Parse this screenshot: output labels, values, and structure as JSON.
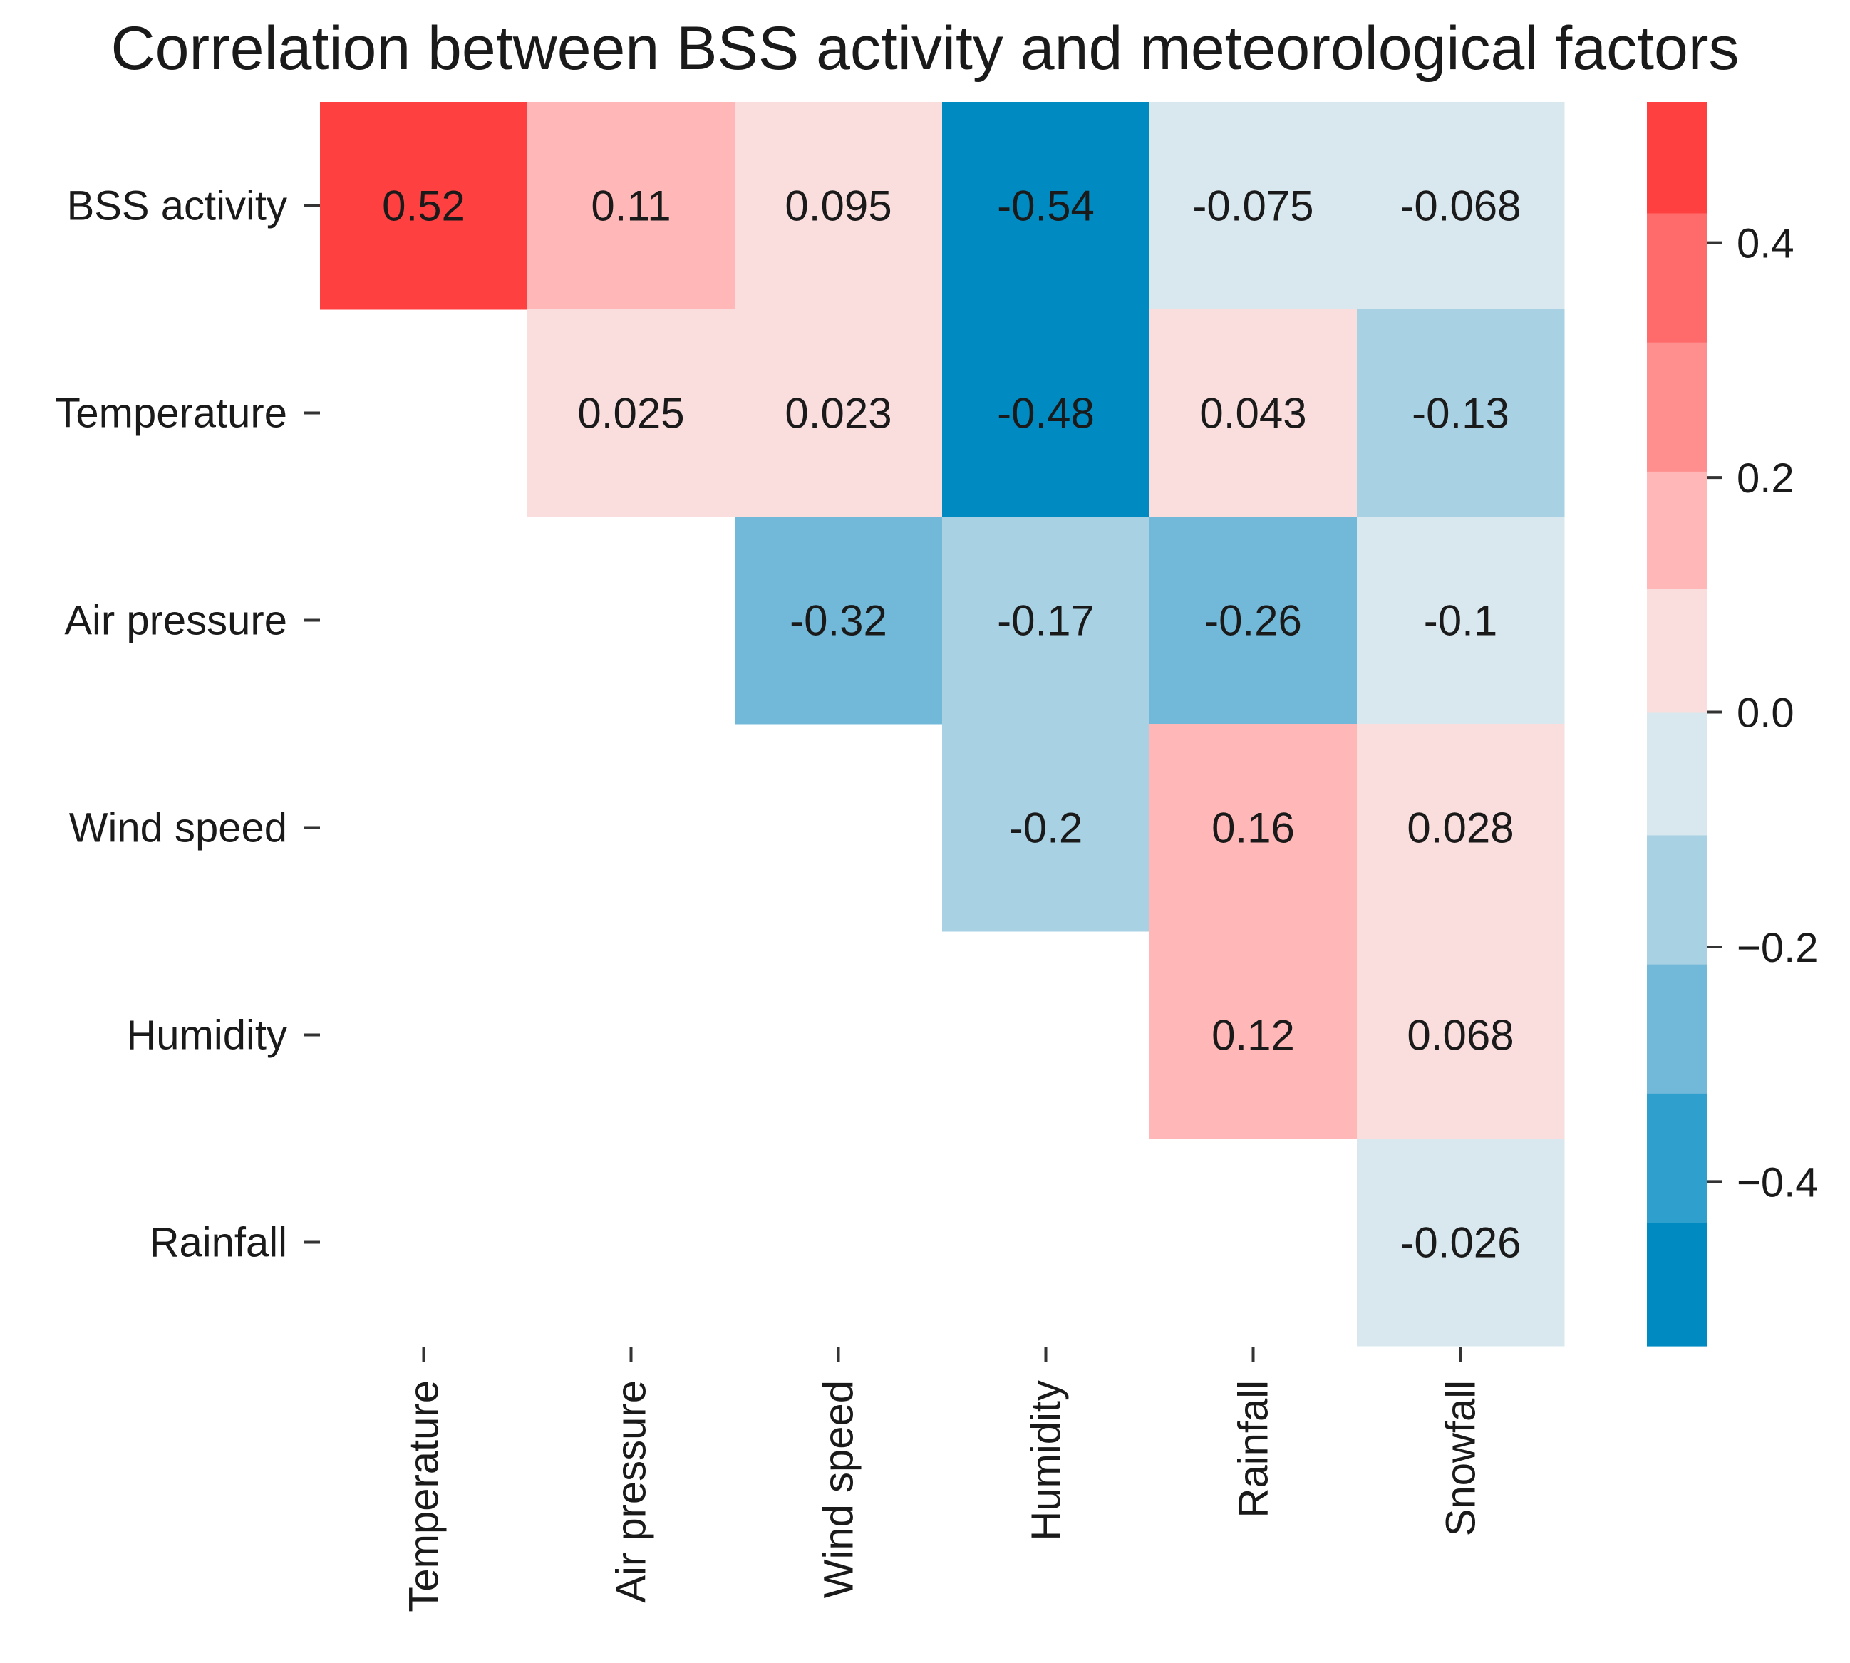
{
  "chart_data": {
    "type": "heatmap",
    "title": "Correlation between BSS activity and meteorological factors",
    "row_labels": [
      "BSS activity",
      "Temperature",
      "Air pressure",
      "Wind speed",
      "Humidity",
      "Rainfall"
    ],
    "col_labels": [
      "Temperature",
      "Air pressure",
      "Wind speed",
      "Humidity",
      "Rainfall",
      "Snowfall"
    ],
    "cells": [
      {
        "row": 0,
        "col": 0,
        "value": 0.52,
        "label": "0.52"
      },
      {
        "row": 0,
        "col": 1,
        "value": 0.11,
        "label": "0.11"
      },
      {
        "row": 0,
        "col": 2,
        "value": 0.095,
        "label": "0.095"
      },
      {
        "row": 0,
        "col": 3,
        "value": -0.54,
        "label": "-0.54"
      },
      {
        "row": 0,
        "col": 4,
        "value": -0.075,
        "label": "-0.075"
      },
      {
        "row": 0,
        "col": 5,
        "value": -0.068,
        "label": "-0.068"
      },
      {
        "row": 1,
        "col": 1,
        "value": 0.025,
        "label": "0.025"
      },
      {
        "row": 1,
        "col": 2,
        "value": 0.023,
        "label": "0.023"
      },
      {
        "row": 1,
        "col": 3,
        "value": -0.48,
        "label": "-0.48"
      },
      {
        "row": 1,
        "col": 4,
        "value": 0.043,
        "label": "0.043"
      },
      {
        "row": 1,
        "col": 5,
        "value": -0.13,
        "label": "-0.13"
      },
      {
        "row": 2,
        "col": 2,
        "value": -0.32,
        "label": "-0.32"
      },
      {
        "row": 2,
        "col": 3,
        "value": -0.17,
        "label": "-0.17"
      },
      {
        "row": 2,
        "col": 4,
        "value": -0.26,
        "label": "-0.26"
      },
      {
        "row": 2,
        "col": 5,
        "value": -0.1,
        "label": "-0.1"
      },
      {
        "row": 3,
        "col": 3,
        "value": -0.2,
        "label": "-0.2"
      },
      {
        "row": 3,
        "col": 4,
        "value": 0.16,
        "label": "0.16"
      },
      {
        "row": 3,
        "col": 5,
        "value": 0.028,
        "label": "0.028"
      },
      {
        "row": 4,
        "col": 4,
        "value": 0.12,
        "label": "0.12"
      },
      {
        "row": 4,
        "col": 5,
        "value": 0.068,
        "label": "0.068"
      },
      {
        "row": 5,
        "col": 5,
        "value": -0.026,
        "label": "-0.026"
      }
    ],
    "colorbar": {
      "vmin": -0.54,
      "vmax": 0.52,
      "ticks": [
        0.4,
        0.2,
        0.0,
        -0.2,
        -0.4
      ],
      "tick_labels": [
        "0.4",
        "0.2",
        "0.0",
        "−0.2",
        "−0.4"
      ],
      "bins": [
        {
          "lo": 0.425,
          "hi": 0.52,
          "color": "#ff4040"
        },
        {
          "lo": 0.315,
          "hi": 0.425,
          "color": "#ff6b6b"
        },
        {
          "lo": 0.205,
          "hi": 0.315,
          "color": "#ff8f8f"
        },
        {
          "lo": 0.105,
          "hi": 0.205,
          "color": "#ffb7b7"
        },
        {
          "lo": 0.0,
          "hi": 0.105,
          "color": "#fadede"
        },
        {
          "lo": -0.105,
          "hi": 0.0,
          "color": "#d9e8ef"
        },
        {
          "lo": -0.215,
          "hi": -0.105,
          "color": "#a9d1e4"
        },
        {
          "lo": -0.325,
          "hi": -0.215,
          "color": "#72b9d9"
        },
        {
          "lo": -0.435,
          "hi": -0.325,
          "color": "#2f9fcd"
        },
        {
          "lo": -0.54,
          "hi": -0.435,
          "color": "#008ac2"
        }
      ]
    }
  }
}
